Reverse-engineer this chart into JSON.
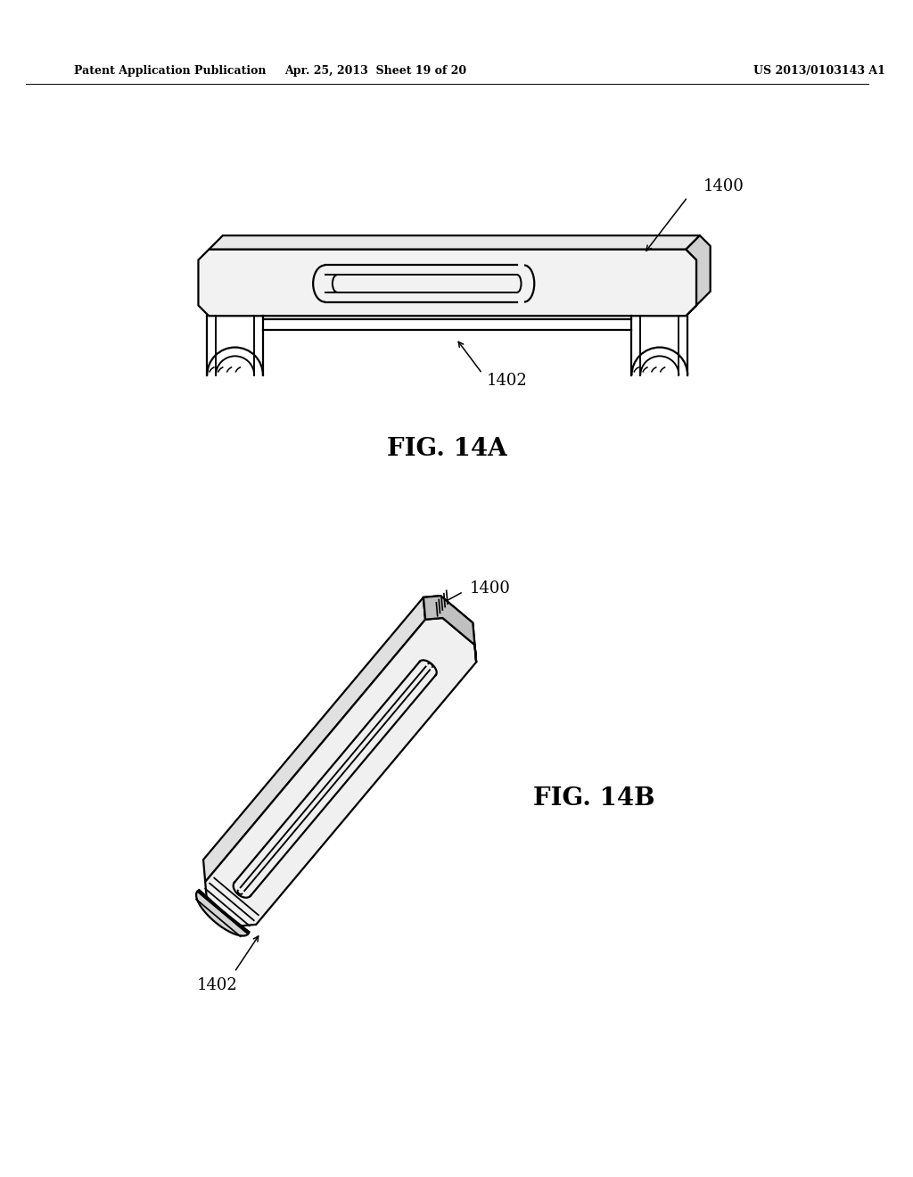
{
  "background_color": "#ffffff",
  "header_left": "Patent Application Publication",
  "header_center": "Apr. 25, 2013  Sheet 19 of 20",
  "header_right": "US 2013/0103143 A1",
  "fig_14a_label": "FIG. 14A",
  "fig_14b_label": "FIG. 14B",
  "label_1400": "1400",
  "label_1402": "1402",
  "line_color": "#000000",
  "figsize": [
    10.24,
    13.2
  ],
  "dpi": 100
}
